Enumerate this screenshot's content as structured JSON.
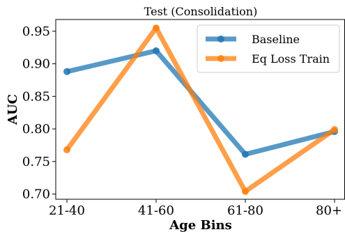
{
  "chart_data": {
    "type": "line",
    "title": "Test (Consolidation)",
    "xlabel": "Age Bins",
    "ylabel": "AUC",
    "categories": [
      "21-40",
      "41-60",
      "61-80",
      "80+"
    ],
    "ylim": [
      0.692,
      0.968
    ],
    "yticks": [
      0.7,
      0.75,
      0.8,
      0.85,
      0.9,
      0.95
    ],
    "ytick_labels": [
      "0.70",
      "0.75",
      "0.80",
      "0.85",
      "0.90",
      "0.95"
    ],
    "grid": false,
    "legend_position": "top-right",
    "series": [
      {
        "name": "Baseline",
        "color": "#1f77b4",
        "values": [
          0.888,
          0.92,
          0.761,
          0.796
        ]
      },
      {
        "name": "Eq Loss Train",
        "color": "#ff7f0e",
        "values": [
          0.768,
          0.955,
          0.704,
          0.799
        ]
      }
    ]
  }
}
